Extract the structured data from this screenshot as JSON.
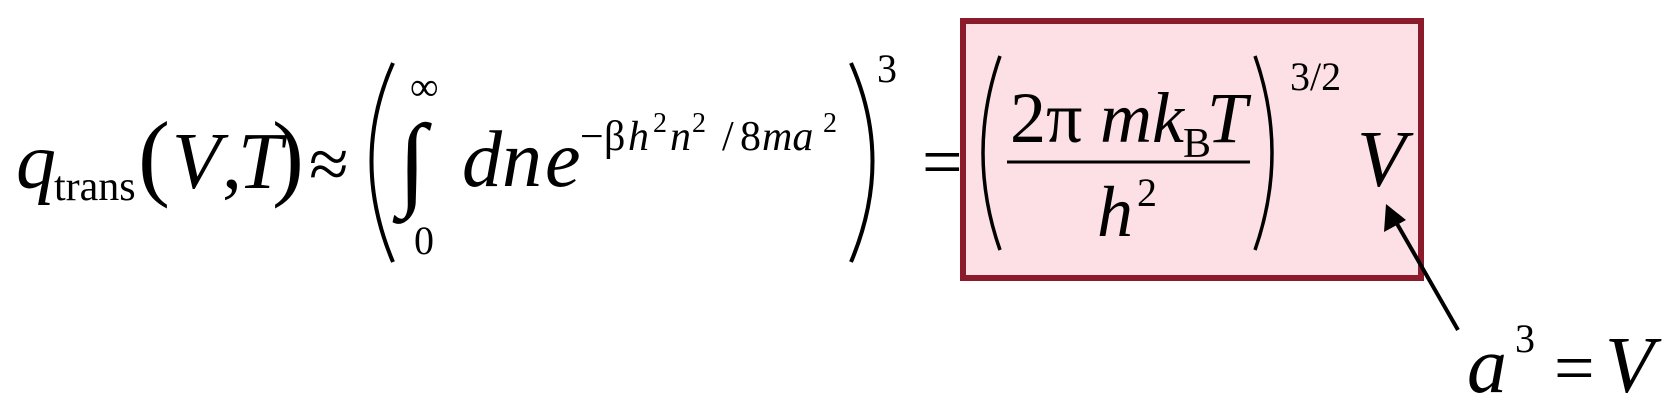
{
  "equation": {
    "lhs": {
      "symbol": "q",
      "subscript": "trans",
      "arg_open": "(",
      "arg_V": "V",
      "arg_comma": ",",
      "arg_T": "T",
      "arg_close": ")"
    },
    "approx_sign": "≈",
    "integral": {
      "open_paren": "(",
      "sign": "∫",
      "upper_limit": "∞",
      "lower_limit": "0",
      "differential": "dn",
      "base": "e",
      "exponent_minus": "−",
      "exponent_beta": "β",
      "exponent_h": "h",
      "exponent_h_pow": "2",
      "exponent_n": "n",
      "exponent_n_pow": "2",
      "exponent_slash": "/",
      "exponent_8": "8",
      "exponent_ma": "ma",
      "exponent_a_pow": "2",
      "close_paren": ")",
      "power": "3"
    },
    "equals_sign": "=",
    "result": {
      "open_paren": "(",
      "numerator_2pi": "2π",
      "numerator_mk": "mk",
      "numerator_sub_B": "B",
      "numerator_T": "T",
      "denominator_h": "h",
      "denominator_pow": "2",
      "close_paren": ")",
      "power": "3/2",
      "factor": "V"
    },
    "annotation": {
      "a": "a",
      "a_pow": "3",
      "equals": "=",
      "V": "V"
    }
  },
  "colors": {
    "text": "#000000",
    "box_fill": "#fde0e6",
    "box_border": "#8b1a2b",
    "arrow": "#000000"
  }
}
